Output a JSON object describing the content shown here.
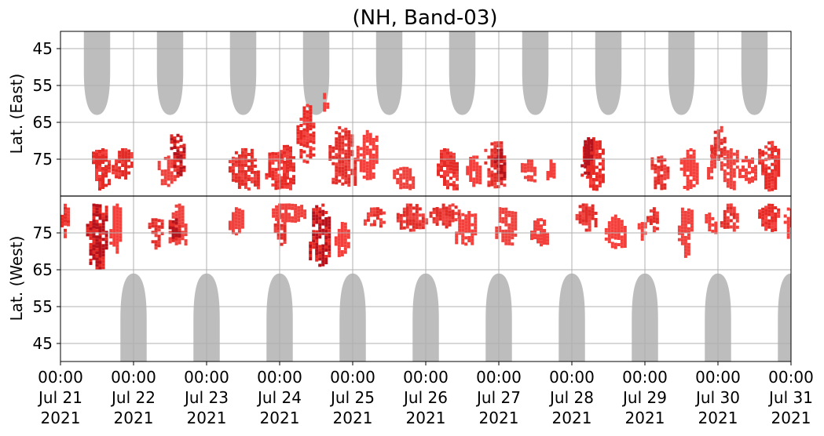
{
  "chart_data": {
    "type": "heatmap",
    "title": "(NH, Band-03)",
    "ylabel_top": "Lat. (East)",
    "ylabel_bottom": "Lat. (West)",
    "grid": true,
    "x_start": "2021-07-21 00:00",
    "x_end": "2021-07-31 00:00",
    "xticks": [
      {
        "time": "00:00",
        "date": "Jul 21",
        "year": "2021"
      },
      {
        "time": "00:00",
        "date": "Jul 22",
        "year": "2021"
      },
      {
        "time": "00:00",
        "date": "Jul 23",
        "year": "2021"
      },
      {
        "time": "00:00",
        "date": "Jul 24",
        "year": "2021"
      },
      {
        "time": "00:00",
        "date": "Jul 25",
        "year": "2021"
      },
      {
        "time": "00:00",
        "date": "Jul 26",
        "year": "2021"
      },
      {
        "time": "00:00",
        "date": "Jul 27",
        "year": "2021"
      },
      {
        "time": "00:00",
        "date": "Jul 28",
        "year": "2021"
      },
      {
        "time": "00:00",
        "date": "Jul 29",
        "year": "2021"
      },
      {
        "time": "00:00",
        "date": "Jul 30",
        "year": "2021"
      },
      {
        "time": "00:00",
        "date": "Jul 31",
        "year": "2021"
      }
    ],
    "yticks_east": [
      "45",
      "55",
      "65",
      "75"
    ],
    "yticks_west": [
      "75",
      "65",
      "55",
      "45"
    ],
    "colors": {
      "gray": "#bdbdbd",
      "red_light": "#f2413c",
      "red": "#e52b26",
      "red_dark": "#b5121b",
      "axis": "#000000",
      "grid": "#b0b0b0"
    },
    "gray_regions_east": [
      {
        "day": 0.5,
        "half_width": 0.18,
        "min_lat": 63
      },
      {
        "day": 1.5,
        "half_width": 0.18,
        "min_lat": 63
      },
      {
        "day": 2.5,
        "half_width": 0.18,
        "min_lat": 63
      },
      {
        "day": 3.5,
        "half_width": 0.18,
        "min_lat": 63
      },
      {
        "day": 4.5,
        "half_width": 0.18,
        "min_lat": 63
      },
      {
        "day": 5.5,
        "half_width": 0.18,
        "min_lat": 63
      },
      {
        "day": 6.5,
        "half_width": 0.18,
        "min_lat": 63
      },
      {
        "day": 7.5,
        "half_width": 0.18,
        "min_lat": 63
      },
      {
        "day": 8.5,
        "half_width": 0.18,
        "min_lat": 63
      },
      {
        "day": 9.5,
        "half_width": 0.18,
        "min_lat": 63
      }
    ],
    "gray_regions_west": [
      {
        "day": 1.0,
        "half_width": 0.18,
        "min_lat": 64
      },
      {
        "day": 2.0,
        "half_width": 0.18,
        "min_lat": 64
      },
      {
        "day": 3.0,
        "half_width": 0.18,
        "min_lat": 64
      },
      {
        "day": 4.0,
        "half_width": 0.18,
        "min_lat": 64
      },
      {
        "day": 5.0,
        "half_width": 0.18,
        "min_lat": 64
      },
      {
        "day": 6.0,
        "half_width": 0.18,
        "min_lat": 64
      },
      {
        "day": 7.0,
        "half_width": 0.18,
        "min_lat": 64
      },
      {
        "day": 8.0,
        "half_width": 0.18,
        "min_lat": 64
      },
      {
        "day": 9.0,
        "half_width": 0.18,
        "min_lat": 64
      },
      {
        "day": 10.0,
        "half_width": 0.18,
        "min_lat": 64
      }
    ],
    "red_patches": [
      {
        "side": "west",
        "day": 0.05,
        "half_width": 0.05,
        "lat_near": 83,
        "lat_far": 74,
        "level": 2
      },
      {
        "side": "west",
        "day": 0.5,
        "half_width": 0.15,
        "lat_near": 83,
        "lat_far": 65,
        "level": 3
      },
      {
        "side": "east",
        "day": 0.55,
        "half_width": 0.12,
        "lat_near": 83,
        "lat_far": 72,
        "level": 2
      },
      {
        "side": "east",
        "day": 0.85,
        "half_width": 0.15,
        "lat_near": 80,
        "lat_far": 72,
        "level": 2
      },
      {
        "side": "west",
        "day": 0.75,
        "half_width": 0.08,
        "lat_near": 83,
        "lat_far": 70,
        "level": 1
      },
      {
        "side": "east",
        "day": 1.45,
        "half_width": 0.12,
        "lat_near": 82,
        "lat_far": 74,
        "level": 1
      },
      {
        "side": "west",
        "day": 1.3,
        "half_width": 0.1,
        "lat_near": 79,
        "lat_far": 71,
        "level": 2
      },
      {
        "side": "west",
        "day": 1.6,
        "half_width": 0.12,
        "lat_near": 83,
        "lat_far": 72,
        "level": 1
      },
      {
        "side": "east",
        "day": 1.6,
        "half_width": 0.1,
        "lat_near": 80,
        "lat_far": 68,
        "level": 3
      },
      {
        "side": "west",
        "day": 1.55,
        "half_width": 0.07,
        "lat_near": 79,
        "lat_far": 73,
        "level": 3
      },
      {
        "side": "east",
        "day": 2.5,
        "half_width": 0.2,
        "lat_near": 83,
        "lat_far": 72,
        "level": 2
      },
      {
        "side": "west",
        "day": 2.4,
        "half_width": 0.1,
        "lat_near": 82,
        "lat_far": 75,
        "level": 1
      },
      {
        "side": "east",
        "day": 2.95,
        "half_width": 0.15,
        "lat_near": 83,
        "lat_far": 73,
        "level": 2
      },
      {
        "side": "west",
        "day": 3.0,
        "half_width": 0.08,
        "lat_near": 80,
        "lat_far": 72,
        "level": 2
      },
      {
        "side": "west",
        "day": 3.1,
        "half_width": 0.25,
        "lat_near": 83,
        "lat_far": 78,
        "level": 1
      },
      {
        "side": "east",
        "day": 3.35,
        "half_width": 0.12,
        "lat_near": 76,
        "lat_far": 60,
        "level": 2
      },
      {
        "side": "east",
        "day": 3.1,
        "half_width": 0.1,
        "lat_near": 83,
        "lat_far": 71,
        "level": 2
      },
      {
        "side": "west",
        "day": 3.55,
        "half_width": 0.15,
        "lat_near": 83,
        "lat_far": 66,
        "level": 3
      },
      {
        "side": "west",
        "day": 3.85,
        "half_width": 0.1,
        "lat_near": 78,
        "lat_far": 69,
        "level": 1
      },
      {
        "side": "east",
        "day": 3.85,
        "half_width": 0.18,
        "lat_near": 83,
        "lat_far": 66,
        "level": 2
      },
      {
        "side": "east",
        "day": 3.6,
        "half_width": 0.05,
        "lat_near": 62,
        "lat_far": 57,
        "level": 1
      },
      {
        "side": "east",
        "day": 4.2,
        "half_width": 0.15,
        "lat_near": 80,
        "lat_far": 67,
        "level": 1
      },
      {
        "side": "west",
        "day": 4.3,
        "half_width": 0.15,
        "lat_near": 82,
        "lat_far": 77,
        "level": 2
      },
      {
        "side": "east",
        "day": 4.7,
        "half_width": 0.15,
        "lat_near": 83,
        "lat_far": 77,
        "level": 1
      },
      {
        "side": "west",
        "day": 4.8,
        "half_width": 0.2,
        "lat_near": 83,
        "lat_far": 76,
        "level": 2
      },
      {
        "side": "east",
        "day": 5.3,
        "half_width": 0.15,
        "lat_near": 83,
        "lat_far": 72,
        "level": 2
      },
      {
        "side": "west",
        "day": 5.25,
        "half_width": 0.2,
        "lat_near": 83,
        "lat_far": 77,
        "level": 2
      },
      {
        "side": "east",
        "day": 5.65,
        "half_width": 0.1,
        "lat_near": 82,
        "lat_far": 74,
        "level": 1
      },
      {
        "side": "west",
        "day": 5.55,
        "half_width": 0.15,
        "lat_near": 81,
        "lat_far": 72,
        "level": 1
      },
      {
        "side": "east",
        "day": 5.95,
        "half_width": 0.15,
        "lat_near": 83,
        "lat_far": 70,
        "level": 2
      },
      {
        "side": "east",
        "day": 6.0,
        "half_width": 0.07,
        "lat_near": 80,
        "lat_far": 72,
        "level": 3
      },
      {
        "side": "west",
        "day": 6.1,
        "half_width": 0.15,
        "lat_near": 82,
        "lat_far": 72,
        "level": 1
      },
      {
        "side": "east",
        "day": 6.4,
        "half_width": 0.1,
        "lat_near": 81,
        "lat_far": 75,
        "level": 1
      },
      {
        "side": "west",
        "day": 6.55,
        "half_width": 0.12,
        "lat_near": 79,
        "lat_far": 72,
        "level": 1
      },
      {
        "side": "east",
        "day": 6.7,
        "half_width": 0.05,
        "lat_near": 80,
        "lat_far": 74,
        "level": 1
      },
      {
        "side": "east",
        "day": 7.3,
        "half_width": 0.15,
        "lat_near": 83,
        "lat_far": 69,
        "level": 2
      },
      {
        "side": "east",
        "day": 7.2,
        "half_width": 0.08,
        "lat_near": 80,
        "lat_far": 69,
        "level": 3
      },
      {
        "side": "west",
        "day": 7.2,
        "half_width": 0.15,
        "lat_near": 83,
        "lat_far": 76,
        "level": 2
      },
      {
        "side": "west",
        "day": 7.6,
        "half_width": 0.15,
        "lat_near": 80,
        "lat_far": 71,
        "level": 1
      },
      {
        "side": "west",
        "day": 7.95,
        "half_width": 0.05,
        "lat_near": 78,
        "lat_far": 73,
        "level": 1
      },
      {
        "side": "east",
        "day": 8.2,
        "half_width": 0.12,
        "lat_near": 83,
        "lat_far": 74,
        "level": 2
      },
      {
        "side": "west",
        "day": 8.1,
        "half_width": 0.08,
        "lat_near": 82,
        "lat_far": 76,
        "level": 2
      },
      {
        "side": "east",
        "day": 8.6,
        "half_width": 0.12,
        "lat_near": 83,
        "lat_far": 72,
        "level": 1
      },
      {
        "side": "west",
        "day": 8.55,
        "half_width": 0.1,
        "lat_near": 82,
        "lat_far": 69,
        "level": 1
      },
      {
        "side": "east",
        "day": 8.9,
        "half_width": 0.05,
        "lat_near": 80,
        "lat_far": 71,
        "level": 1
      },
      {
        "side": "west",
        "day": 8.9,
        "half_width": 0.08,
        "lat_near": 81,
        "lat_far": 75,
        "level": 1
      },
      {
        "side": "east",
        "day": 9.0,
        "half_width": 0.1,
        "lat_near": 75,
        "lat_far": 66,
        "level": 2
      },
      {
        "side": "east",
        "day": 9.15,
        "half_width": 0.12,
        "lat_near": 83,
        "lat_far": 72,
        "level": 1
      },
      {
        "side": "west",
        "day": 9.15,
        "half_width": 0.12,
        "lat_near": 83,
        "lat_far": 76,
        "level": 2
      },
      {
        "side": "east",
        "day": 9.4,
        "half_width": 0.12,
        "lat_near": 81,
        "lat_far": 74,
        "level": 1
      },
      {
        "side": "east",
        "day": 9.7,
        "half_width": 0.15,
        "lat_near": 83,
        "lat_far": 70,
        "level": 2
      },
      {
        "side": "west",
        "day": 9.7,
        "half_width": 0.15,
        "lat_near": 83,
        "lat_far": 76,
        "level": 2
      },
      {
        "side": "west",
        "day": 9.95,
        "half_width": 0.05,
        "lat_near": 82,
        "lat_far": 74,
        "level": 1
      }
    ]
  }
}
